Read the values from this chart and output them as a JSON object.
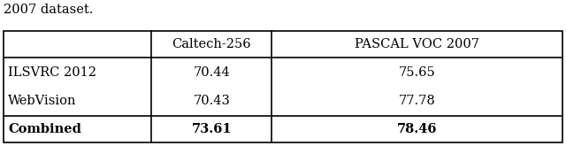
{
  "caption": "2007 dataset.",
  "col_headers": [
    "",
    "Caltech-256",
    "PASCAL VOC 2007"
  ],
  "rows": [
    {
      "label": "ILSVRC 2012",
      "caltech": "70.44",
      "pascal": "75.65",
      "bold": false
    },
    {
      "label": "WebVision",
      "caltech": "70.43",
      "pascal": "77.78",
      "bold": false
    },
    {
      "label": "Combined",
      "caltech": "73.61",
      "pascal": "78.46",
      "bold": true
    }
  ],
  "font_size": 10.5,
  "caption_font_size": 10.5,
  "bg_color": "#ffffff",
  "border_color": "#000000",
  "lw": 1.2,
  "fig_width": 6.4,
  "fig_height": 1.65,
  "dpi": 100
}
